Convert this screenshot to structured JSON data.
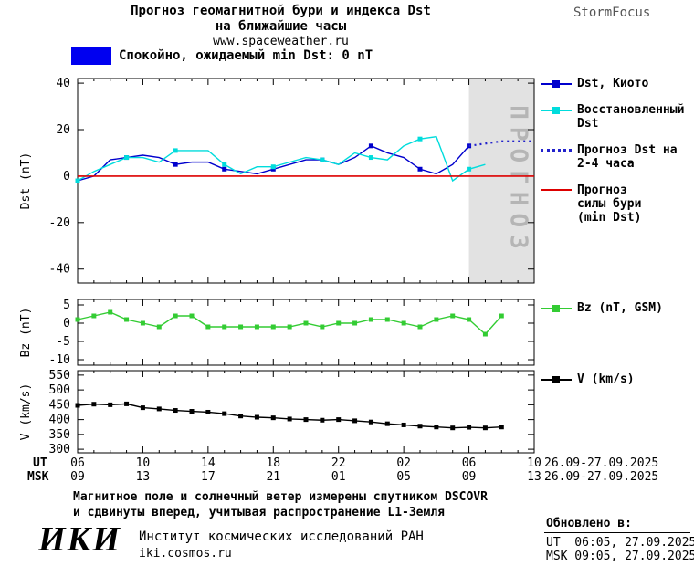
{
  "header": {
    "title_line1": "Прогноз геомагнитной бури и индекса Dst",
    "title_line2": "на ближайшие часы",
    "subtitle": "www.spaceweather.ru",
    "brand": "StormFocus"
  },
  "status_banner": {
    "label": "Спокойно, ожидаемый min Dst: 0 nT",
    "color": "#0000f0"
  },
  "xaxis": {
    "ut_label": "UT",
    "msk_label": "MSK",
    "tick_hours": [
      6,
      10,
      14,
      18,
      22,
      26,
      30,
      34
    ],
    "ut_ticks": [
      "06",
      "10",
      "14",
      "18",
      "22",
      "02",
      "06",
      "10"
    ],
    "msk_ticks": [
      "09",
      "13",
      "17",
      "21",
      "01",
      "05",
      "09",
      "13"
    ],
    "date_range_ut": "26.09-27.09.2025",
    "date_range_msk": "26.09-27.09.2025"
  },
  "footnote": {
    "line1": "Магнитное поле и солнечный ветер измерены спутником DSCOVR",
    "line2": "и сдвинуты вперед, учитывая распространение L1-Земля"
  },
  "footer": {
    "logo": "ИКИ",
    "institute": "Институт космических исследований РАН",
    "site": "iki.cosmos.ru",
    "updated_label": "Обновлено в:",
    "updated_ut": "UT  06:05, 27.09.2025",
    "updated_msk": "MSK 09:05, 27.09.2025"
  },
  "chart_data": [
    {
      "type": "line",
      "title": "Прогноз геомагнитной бури и индекса Dst",
      "ylabel": "Dst (nT)",
      "xlabel": "UT hours 26.09-27.09.2025",
      "xlim": [
        6,
        34
      ],
      "ylim": [
        -46,
        42
      ],
      "yticks": [
        40,
        20,
        0,
        -20,
        -40
      ],
      "forecast_band": {
        "x0": 30,
        "x1": 34,
        "label": "ПРОГНОЗ",
        "fill": "#e2e2e2",
        "text_color": "#b5b5b5"
      },
      "series": [
        {
          "name": "Dst, Киото",
          "color": "#0000cd",
          "marker": "square",
          "marker_every": 3,
          "x": [
            6,
            7,
            8,
            9,
            10,
            11,
            12,
            13,
            14,
            15,
            16,
            17,
            18,
            19,
            20,
            21,
            22,
            23,
            24,
            25,
            26,
            27,
            28,
            29,
            30
          ],
          "y": [
            -2,
            0,
            7,
            8,
            9,
            8,
            5,
            6,
            6,
            3,
            2,
            1,
            3,
            5,
            7,
            7,
            5,
            8,
            13,
            10,
            8,
            3,
            1,
            5,
            13
          ]
        },
        {
          "name": "Восстановленный Dst",
          "color": "#00dcdc",
          "marker": "square",
          "marker_every": 3,
          "x": [
            6,
            7,
            8,
            9,
            10,
            11,
            12,
            13,
            14,
            15,
            16,
            17,
            18,
            19,
            20,
            21,
            22,
            23,
            24,
            25,
            26,
            27,
            28,
            29,
            30,
            31
          ],
          "y": [
            -2,
            2,
            5,
            8,
            8,
            6,
            11,
            11,
            11,
            5,
            1,
            4,
            4,
            6,
            8,
            7,
            5,
            10,
            8,
            7,
            13,
            16,
            17,
            -2,
            3,
            5
          ]
        },
        {
          "name": "Прогноз Dst на 2-4 часа",
          "color": "#2222cc",
          "style": "dotted",
          "x": [
            30,
            31,
            32,
            33,
            34
          ],
          "y": [
            13,
            14,
            15,
            15,
            15
          ]
        },
        {
          "name": "Прогноз силы бури (min Dst)",
          "color": "#dd0000",
          "style": "hline",
          "y0": 0
        }
      ]
    },
    {
      "type": "line",
      "ylabel": "Bz (nT)",
      "xlim": [
        6,
        34
      ],
      "ylim": [
        -11.5,
        6.5
      ],
      "yticks": [
        5,
        0,
        -5,
        -10
      ],
      "series": [
        {
          "name": "Bz (nT, GSM)",
          "color": "#33cc33",
          "marker": "square",
          "marker_every": 1,
          "x": [
            6,
            7,
            8,
            9,
            10,
            11,
            12,
            13,
            14,
            15,
            16,
            17,
            18,
            19,
            20,
            21,
            22,
            23,
            24,
            25,
            26,
            27,
            28,
            29,
            30,
            31,
            32
          ],
          "y": [
            1,
            2,
            3,
            1,
            0,
            -1,
            2,
            2,
            -1,
            -1,
            -1,
            -1,
            -1,
            -1,
            0,
            -1,
            0,
            0,
            1,
            1,
            0,
            -1,
            1,
            2,
            1,
            -3,
            2
          ]
        }
      ]
    },
    {
      "type": "line",
      "ylabel": "V (km/s)",
      "xlim": [
        6,
        34
      ],
      "ylim": [
        288,
        565
      ],
      "yticks": [
        550,
        500,
        450,
        400,
        350,
        300
      ],
      "series": [
        {
          "name": "V (km/s)",
          "color": "#000000",
          "marker": "square",
          "marker_every": 1,
          "x": [
            6,
            7,
            8,
            9,
            10,
            11,
            12,
            13,
            14,
            15,
            16,
            17,
            18,
            19,
            20,
            21,
            22,
            23,
            24,
            25,
            26,
            27,
            28,
            29,
            30,
            31,
            32
          ],
          "y": [
            448,
            452,
            450,
            453,
            440,
            436,
            431,
            428,
            425,
            420,
            412,
            408,
            406,
            402,
            400,
            398,
            400,
            396,
            392,
            386,
            382,
            378,
            375,
            372,
            374,
            372,
            375
          ]
        }
      ]
    }
  ]
}
